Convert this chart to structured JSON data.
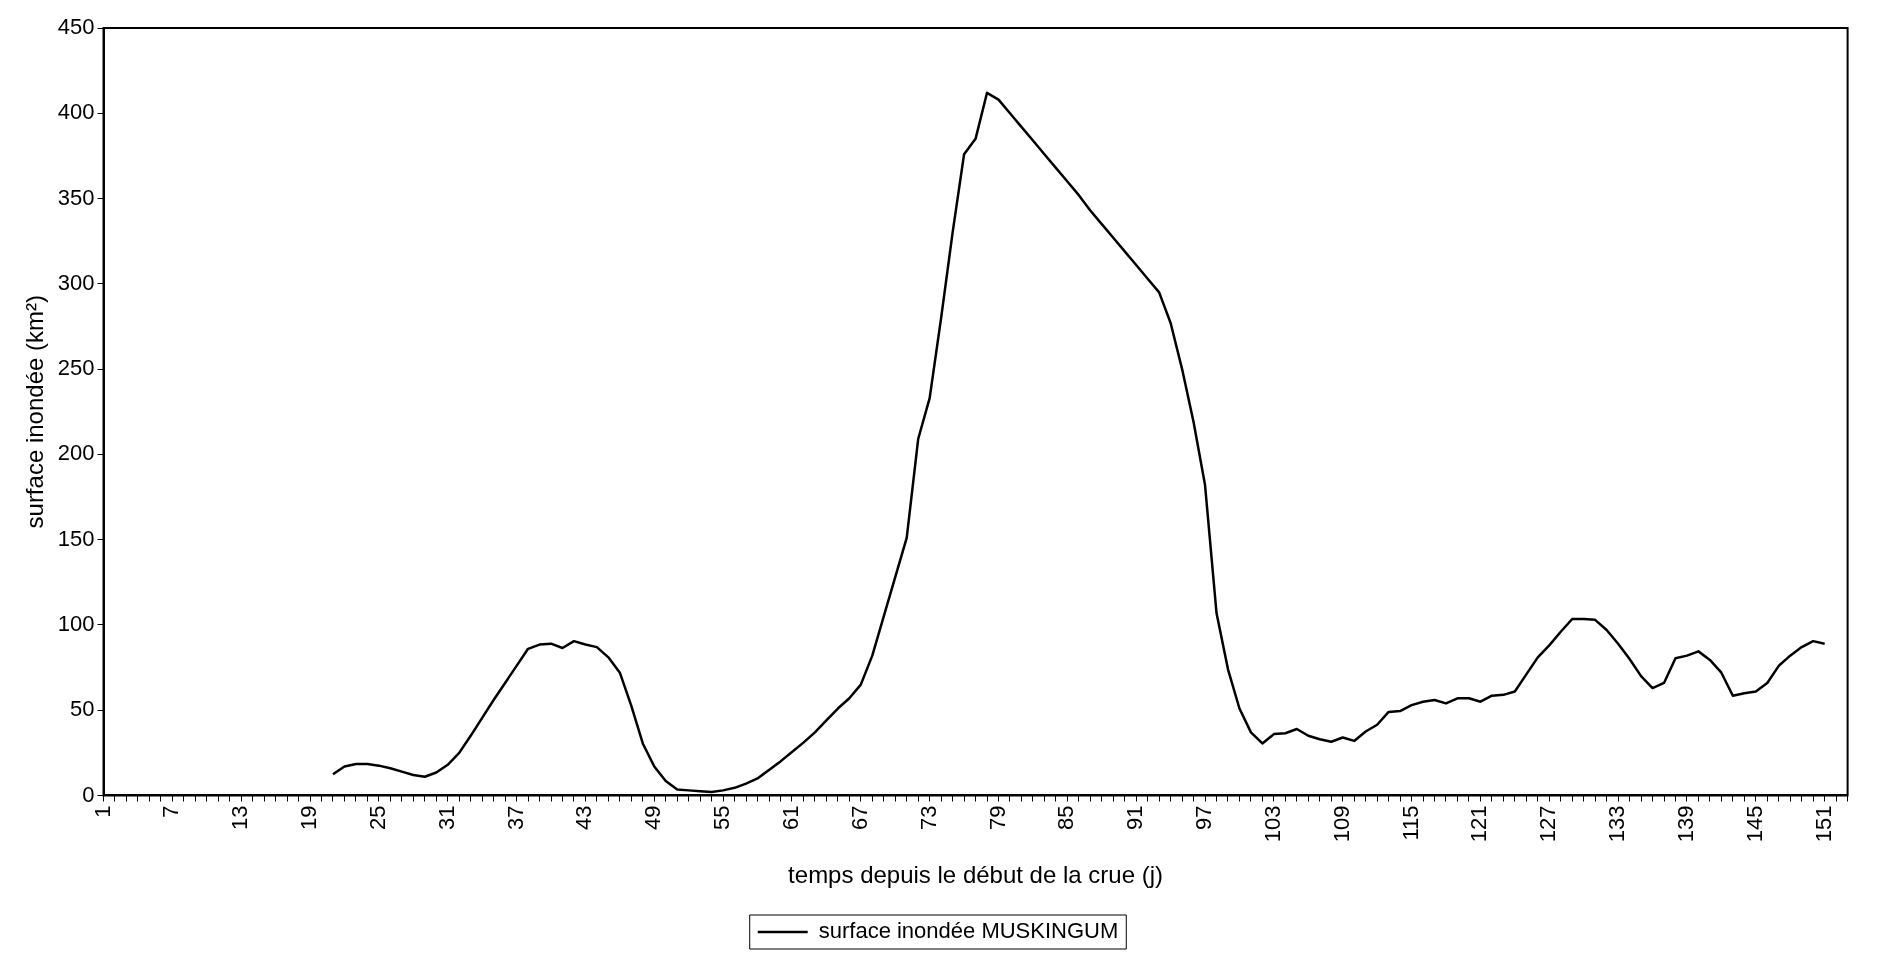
{
  "chart_data": {
    "type": "line",
    "xlabel": "temps depuis le début de la crue (j)",
    "ylabel": "surface inondée (km²)",
    "categories": [
      "1",
      null,
      null,
      null,
      null,
      null,
      "7",
      null,
      null,
      null,
      null,
      null,
      "13",
      null,
      null,
      null,
      null,
      null,
      "19",
      null,
      null,
      null,
      null,
      null,
      "25",
      null,
      null,
      null,
      null,
      null,
      "31",
      null,
      null,
      null,
      null,
      null,
      "37",
      null,
      null,
      null,
      null,
      null,
      "43",
      null,
      null,
      null,
      null,
      null,
      "49",
      null,
      null,
      null,
      null,
      null,
      "55",
      null,
      null,
      null,
      null,
      null,
      "61",
      null,
      null,
      null,
      null,
      null,
      "67",
      null,
      null,
      null,
      null,
      null,
      "73",
      null,
      null,
      null,
      null,
      null,
      "79",
      null,
      null,
      null,
      null,
      null,
      "85",
      null,
      null,
      null,
      null,
      null,
      "91",
      null,
      null,
      null,
      null,
      null,
      "97",
      null,
      null,
      null,
      null,
      null,
      "103",
      null,
      null,
      null,
      null,
      null,
      "109",
      null,
      null,
      null,
      null,
      null,
      "115",
      null,
      null,
      null,
      null,
      null,
      "121",
      null,
      null,
      null,
      null,
      null,
      "127",
      null,
      null,
      null,
      null,
      null,
      "133",
      null,
      null,
      null,
      null,
      null,
      "139",
      null,
      null,
      null,
      null,
      null,
      "145",
      null,
      null,
      null,
      null,
      null,
      "151",
      null,
      null
    ],
    "series": [
      {
        "name": "surface inondée MUSKINGUM",
        "color": "#000000",
        "values": [
          null,
          null,
          null,
          null,
          null,
          null,
          null,
          null,
          null,
          null,
          null,
          null,
          null,
          null,
          null,
          null,
          null,
          null,
          null,
          null,
          12.5,
          17,
          18.5,
          18.5,
          17.5,
          16,
          14,
          12,
          11,
          13.5,
          18,
          25,
          35,
          45.5,
          56,
          66,
          76,
          86,
          88.5,
          89,
          86.5,
          90.5,
          88.5,
          87,
          81,
          72,
          52.5,
          30.5,
          17,
          8.5,
          3.5,
          3,
          2.5,
          2,
          3,
          4.5,
          7,
          10,
          15,
          20,
          25.5,
          31,
          37,
          44,
          51,
          57,
          65,
          82,
          105,
          128,
          151,
          209,
          233,
          280,
          330,
          376,
          385,
          412,
          408,
          400,
          392,
          384,
          376,
          368,
          360,
          352,
          343,
          335,
          327,
          319,
          311,
          303,
          295,
          277,
          250,
          219,
          182,
          107,
          74,
          51,
          37,
          30.5,
          36,
          36.5,
          39,
          35,
          33,
          31.5,
          34,
          32,
          37.5,
          41.5,
          49,
          49.5,
          53,
          55,
          56,
          54,
          57,
          57,
          55,
          58.5,
          59,
          61,
          71,
          81,
          88,
          96,
          103.5,
          103.5,
          103,
          97,
          89,
          80,
          70,
          63,
          66,
          80.5,
          82,
          84.5,
          79.5,
          72,
          58.5,
          60,
          61,
          66,
          76,
          82,
          87,
          90.5,
          89,
          null,
          null
        ]
      }
    ],
    "ylim": [
      0,
      450
    ],
    "yticks": [
      0,
      50,
      100,
      150,
      200,
      250,
      300,
      350,
      400,
      450
    ],
    "legend": "bottom",
    "grid": false
  }
}
